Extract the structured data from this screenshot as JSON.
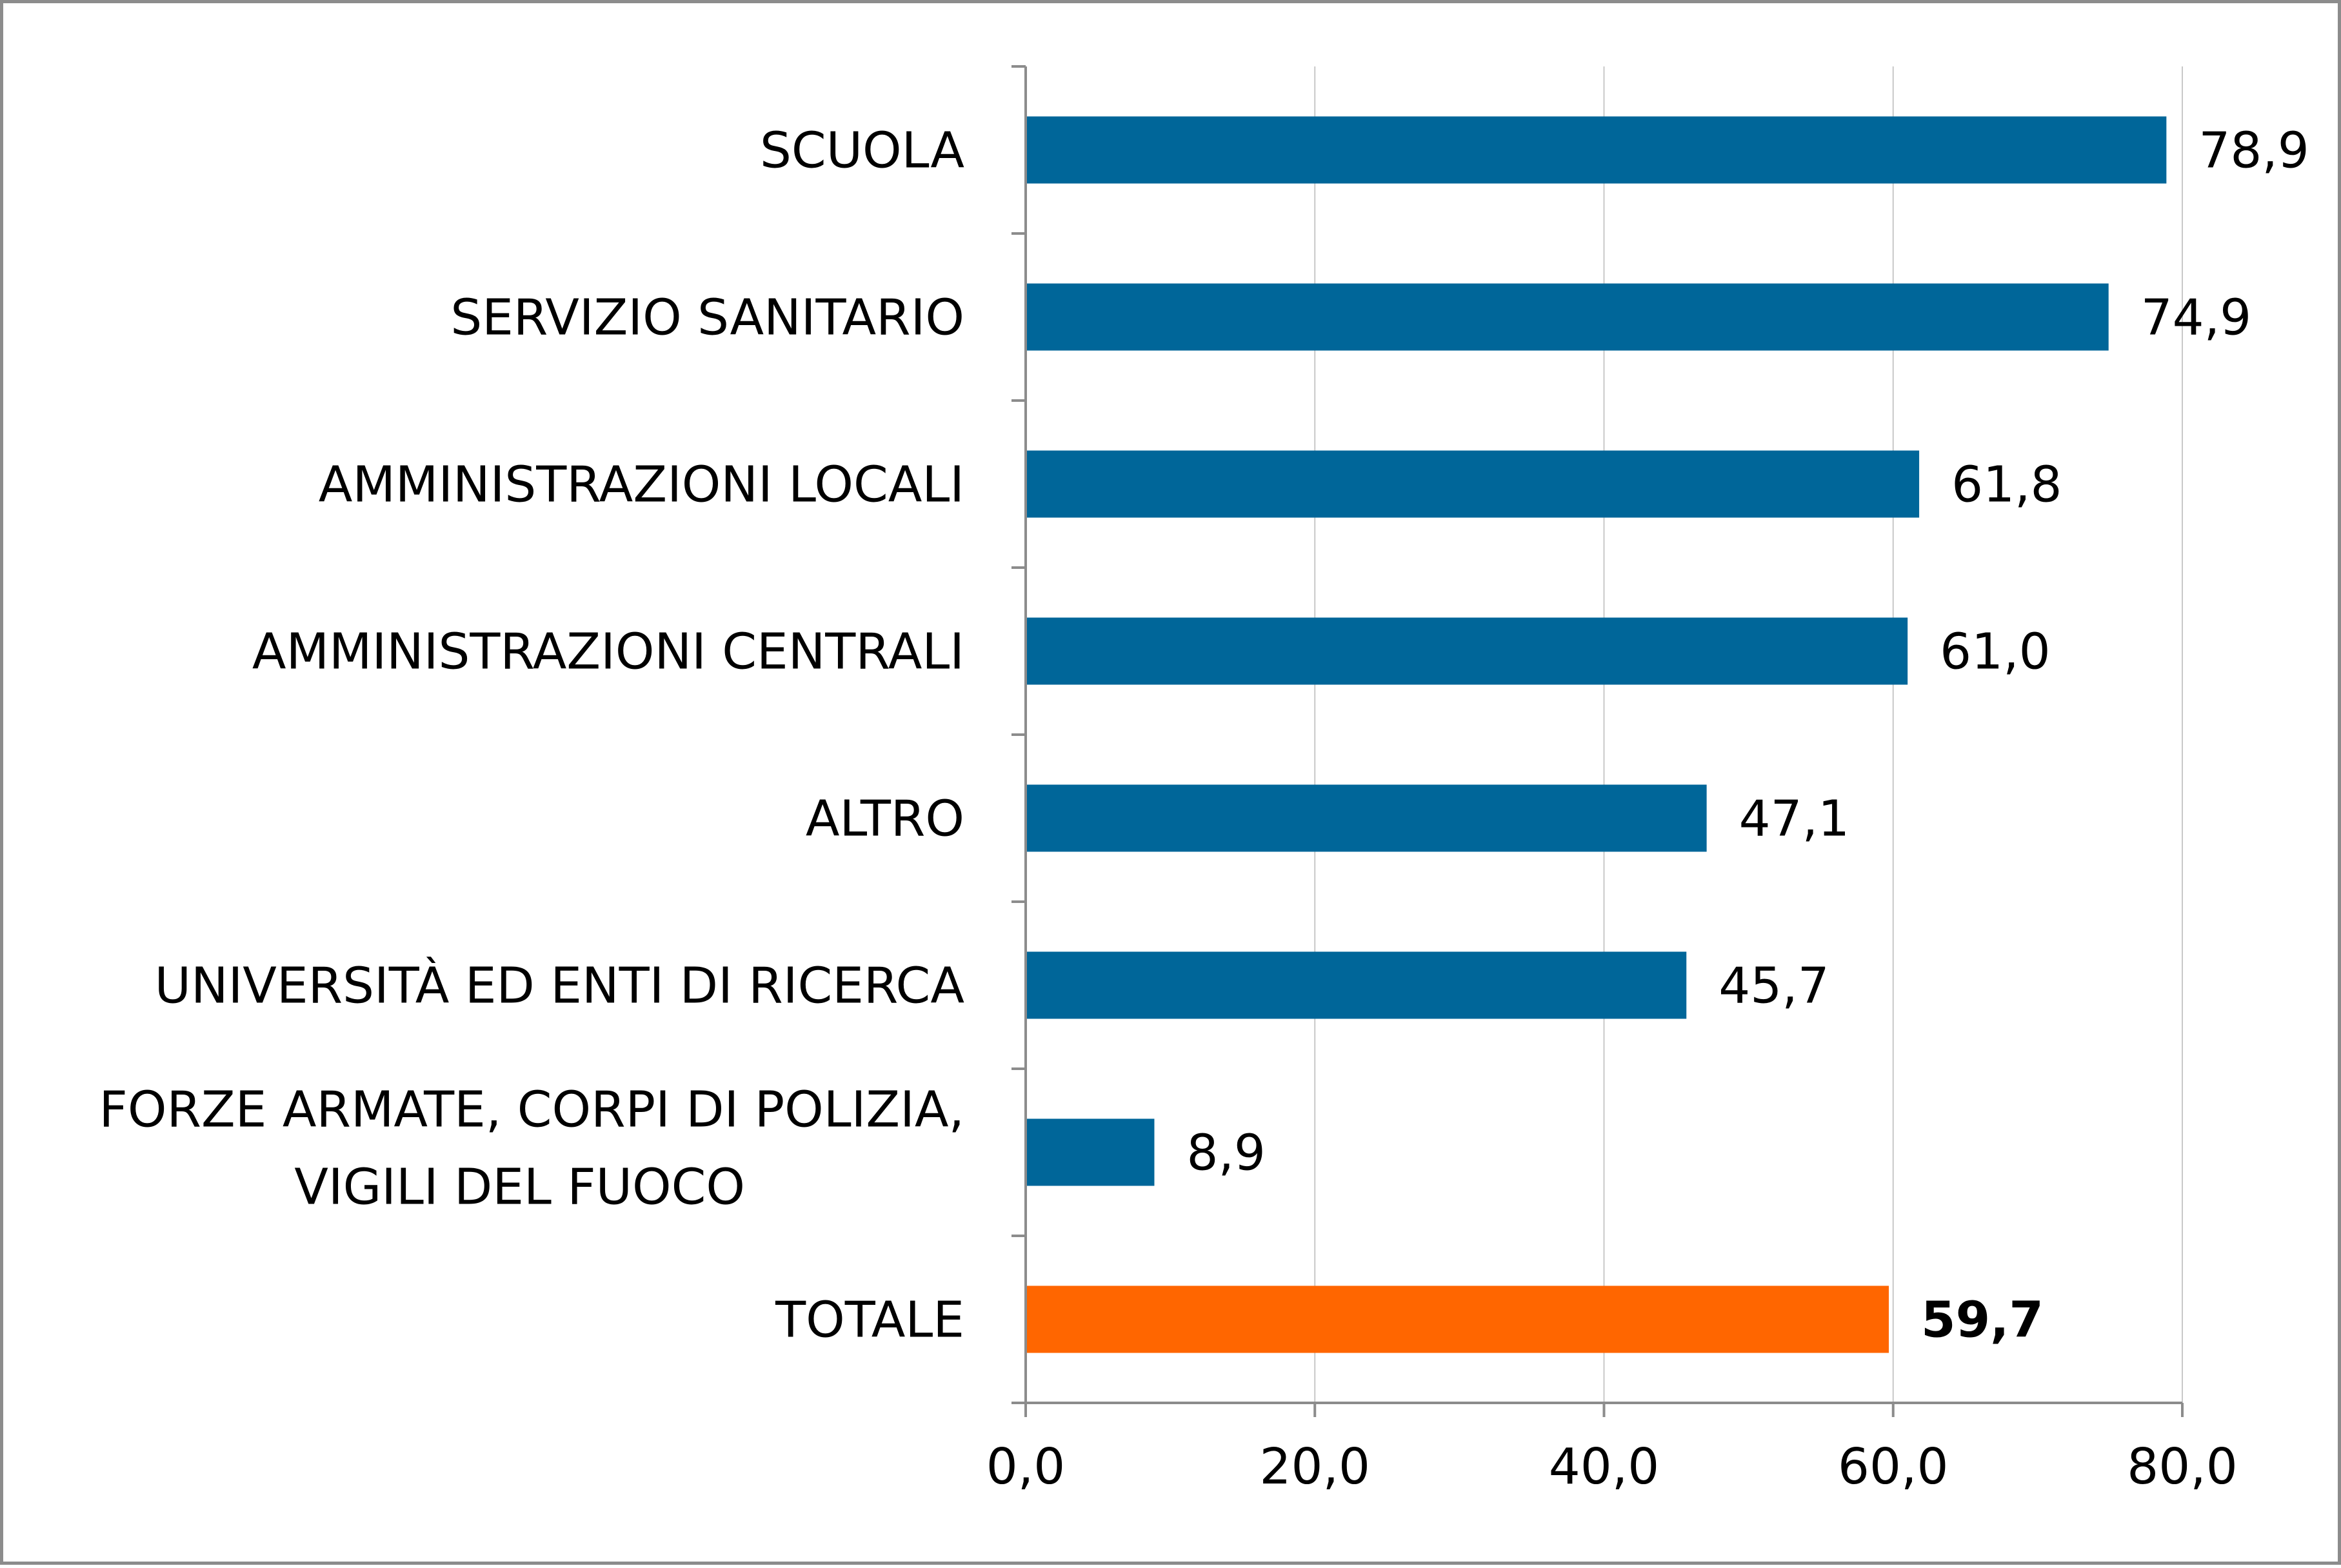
{
  "chart_data": {
    "type": "bar",
    "orientation": "horizontal",
    "categories": [
      "SCUOLA",
      "SERVIZIO SANITARIO",
      "AMMINISTRAZIONI LOCALI",
      "AMMINISTRAZIONI CENTRALI",
      "ALTRO",
      "UNIVERSITÀ ED ENTI DI RICERCA",
      "FORZE ARMATE, CORPI DI POLIZIA, VIGILI DEL FUOCO",
      "TOTALE"
    ],
    "values": [
      78.9,
      74.9,
      61.8,
      61.0,
      47.1,
      45.7,
      8.9,
      59.7
    ],
    "value_labels": [
      "78,9",
      "74,9",
      "61,8",
      "61,0",
      "47,1",
      "45,7",
      "8,9",
      "59,7"
    ],
    "highlight_index": 7,
    "xlim": [
      0,
      80
    ],
    "xticks": [
      0,
      20,
      40,
      60,
      80
    ],
    "xtick_labels": [
      "0,0",
      "20,0",
      "40,0",
      "60,0",
      "80,0"
    ],
    "grid": "vertical",
    "legend": "none",
    "colors": {
      "bar": "#006699",
      "highlight": "#ff6600",
      "grid": "#c8c8c8",
      "axis": "#8c8c8c"
    }
  }
}
